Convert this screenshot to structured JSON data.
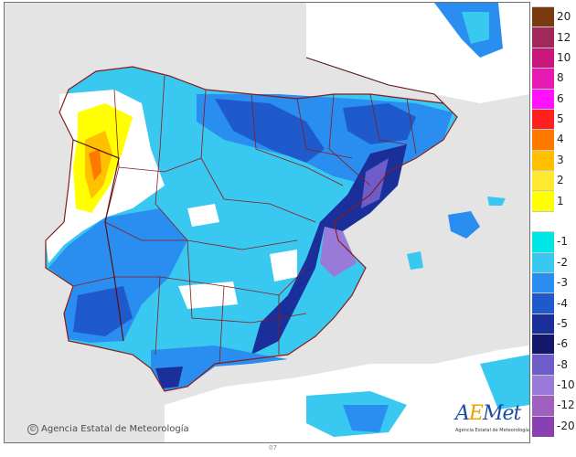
{
  "legend": {
    "items": [
      {
        "label": "20",
        "color": "#7a3a10"
      },
      {
        "label": "12",
        "color": "#a0285a"
      },
      {
        "label": "10",
        "color": "#c8167a"
      },
      {
        "label": "8",
        "color": "#e81ab4"
      },
      {
        "label": "6",
        "color": "#ff10ff"
      },
      {
        "label": "5",
        "color": "#ff2020"
      },
      {
        "label": "4",
        "color": "#ff7800"
      },
      {
        "label": "3",
        "color": "#ffc000"
      },
      {
        "label": "2",
        "color": "#ffe830"
      },
      {
        "label": "1",
        "color": "#ffff00"
      },
      {
        "label": "",
        "color": "#ffffff"
      },
      {
        "label": "-1",
        "color": "#00e6e6"
      },
      {
        "label": "-2",
        "color": "#38c8f0"
      },
      {
        "label": "-3",
        "color": "#2a8ef0"
      },
      {
        "label": "-4",
        "color": "#1f5acc"
      },
      {
        "label": "-5",
        "color": "#1a2f9a"
      },
      {
        "label": "-6",
        "color": "#14186a"
      },
      {
        "label": "-8",
        "color": "#6e5cc8"
      },
      {
        "label": "-10",
        "color": "#9a7ad8"
      },
      {
        "label": "-12",
        "color": "#a060c0"
      },
      {
        "label": "-20",
        "color": "#8a40b0"
      }
    ]
  },
  "copyright": {
    "symbol": "©",
    "text": "Agencia Estatal de Meteorología"
  },
  "logo": {
    "text_a": "A",
    "text_e": "E",
    "text_rest": "Met",
    "subtitle": "Agencia Estatal de Meteorología"
  },
  "bottom_mark": "07",
  "colors": {
    "sea": "#e4e4e4",
    "land_outline": "#8b1a1a",
    "border_dark": "#5a1010"
  }
}
